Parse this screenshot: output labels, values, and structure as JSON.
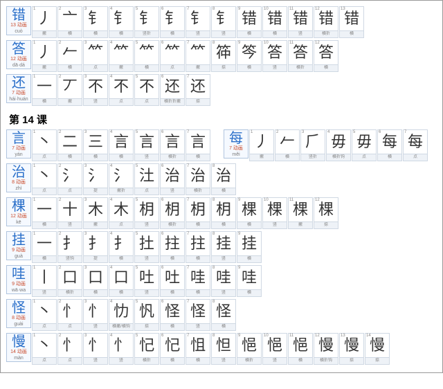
{
  "colors": {
    "border": "#cfd8e3",
    "head_border": "#b0c4de",
    "head_bg": "#f5f9ff",
    "char_color": "#2a6fc9",
    "stroke_count_color": "#c94a2a",
    "pinyin_color": "#7a7a7a",
    "label_bg": "#eef2f7",
    "glyph_color": "#333333"
  },
  "section_title": "第 14 课",
  "rows_top": [
    {
      "char": "错",
      "strokes_label": "13 动画",
      "pinyin": "cuò",
      "cells": [
        {
          "n": "1",
          "g": "丿",
          "l": "撇"
        },
        {
          "n": "2",
          "g": "亠",
          "l": "横"
        },
        {
          "n": "3",
          "g": "钅",
          "l": "横"
        },
        {
          "n": "4",
          "g": "钅",
          "l": "横"
        },
        {
          "n": "5",
          "g": "钅",
          "l": "竖折"
        },
        {
          "n": "6",
          "g": "钅",
          "l": "横"
        },
        {
          "n": "7",
          "g": "钅",
          "l": "竖"
        },
        {
          "n": "8",
          "g": "钅",
          "l": "竖"
        },
        {
          "n": "9",
          "g": "错",
          "l": "横"
        },
        {
          "n": "10",
          "g": "错",
          "l": "横"
        },
        {
          "n": "11",
          "g": "错",
          "l": "竖"
        },
        {
          "n": "12",
          "g": "错",
          "l": "横折"
        },
        {
          "n": "13",
          "g": "错",
          "l": "横"
        }
      ]
    },
    {
      "char": "答",
      "strokes_label": "12 动画",
      "pinyin": "dā·dá",
      "cells": [
        {
          "n": "1",
          "g": "丿",
          "l": "撇"
        },
        {
          "n": "2",
          "g": "𠂉",
          "l": "横"
        },
        {
          "n": "3",
          "g": "⺮",
          "l": "点"
        },
        {
          "n": "4",
          "g": "⺮",
          "l": "撇"
        },
        {
          "n": "5",
          "g": "⺮",
          "l": "横"
        },
        {
          "n": "6",
          "g": "⺮",
          "l": "点"
        },
        {
          "n": "7",
          "g": "⺮",
          "l": "撇"
        },
        {
          "n": "8",
          "g": "筗",
          "l": "捺"
        },
        {
          "n": "9",
          "g": "笒",
          "l": "横"
        },
        {
          "n": "10",
          "g": "答",
          "l": "竖"
        },
        {
          "n": "11",
          "g": "答",
          "l": "横折"
        },
        {
          "n": "12",
          "g": "答",
          "l": "横"
        }
      ]
    },
    {
      "char": "还",
      "strokes_label": "7 动画",
      "pinyin": "hái·huán",
      "cells": [
        {
          "n": "1",
          "g": "一",
          "l": "横"
        },
        {
          "n": "2",
          "g": "丆",
          "l": "撇"
        },
        {
          "n": "3",
          "g": "不",
          "l": "竖"
        },
        {
          "n": "4",
          "g": "不",
          "l": "点"
        },
        {
          "n": "5",
          "g": "不",
          "l": "点"
        },
        {
          "n": "6",
          "g": "还",
          "l": "横折折撇"
        },
        {
          "n": "7",
          "g": "还",
          "l": "捺"
        }
      ]
    }
  ],
  "rows_14": [
    {
      "left": {
        "char": "言",
        "strokes_label": "7 动画",
        "pinyin": "yán",
        "cells": [
          {
            "n": "1",
            "g": "丶",
            "l": "点"
          },
          {
            "n": "2",
            "g": "二",
            "l": "横"
          },
          {
            "n": "3",
            "g": "三",
            "l": "横"
          },
          {
            "n": "4",
            "g": "言",
            "l": "横"
          },
          {
            "n": "5",
            "g": "言",
            "l": "竖"
          },
          {
            "n": "6",
            "g": "言",
            "l": "横折"
          },
          {
            "n": "7",
            "g": "言",
            "l": "横"
          }
        ]
      },
      "right": {
        "char": "每",
        "strokes_label": "7 动画",
        "pinyin": "měi",
        "cells": [
          {
            "n": "1",
            "g": "丿",
            "l": "撇"
          },
          {
            "n": "2",
            "g": "𠂉",
            "l": "横"
          },
          {
            "n": "3",
            "g": "⺁",
            "l": "竖折"
          },
          {
            "n": "4",
            "g": "毋",
            "l": "横折钩"
          },
          {
            "n": "5",
            "g": "毋",
            "l": "点"
          },
          {
            "n": "6",
            "g": "每",
            "l": "横"
          },
          {
            "n": "7",
            "g": "每",
            "l": "点"
          }
        ]
      }
    },
    {
      "left": {
        "char": "治",
        "strokes_label": "8 动画",
        "pinyin": "zhì",
        "cells": [
          {
            "n": "1",
            "g": "丶",
            "l": "点"
          },
          {
            "n": "2",
            "g": "氵",
            "l": "点"
          },
          {
            "n": "3",
            "g": "氵",
            "l": "提"
          },
          {
            "n": "4",
            "g": "氵",
            "l": "撇折"
          },
          {
            "n": "5",
            "g": "汢",
            "l": "点"
          },
          {
            "n": "6",
            "g": "治",
            "l": "竖"
          },
          {
            "n": "7",
            "g": "治",
            "l": "横折"
          },
          {
            "n": "8",
            "g": "治",
            "l": "横"
          }
        ]
      }
    },
    {
      "left": {
        "char": "棵",
        "strokes_label": "12 动画",
        "pinyin": "kē",
        "cells": [
          {
            "n": "1",
            "g": "一",
            "l": "横"
          },
          {
            "n": "2",
            "g": "十",
            "l": "竖"
          },
          {
            "n": "3",
            "g": "木",
            "l": "撇"
          },
          {
            "n": "4",
            "g": "木",
            "l": "点"
          },
          {
            "n": "5",
            "g": "枂",
            "l": "竖"
          },
          {
            "n": "6",
            "g": "枂",
            "l": "横折"
          },
          {
            "n": "7",
            "g": "枂",
            "l": "横"
          },
          {
            "n": "8",
            "g": "枂",
            "l": "横"
          },
          {
            "n": "9",
            "g": "棵",
            "l": "横"
          },
          {
            "n": "10",
            "g": "棵",
            "l": "竖"
          },
          {
            "n": "11",
            "g": "棵",
            "l": "撇"
          },
          {
            "n": "12",
            "g": "棵",
            "l": "捺"
          }
        ]
      }
    },
    {
      "left": {
        "char": "挂",
        "strokes_label": "9 动画",
        "pinyin": "guà",
        "cells": [
          {
            "n": "1",
            "g": "一",
            "l": "横"
          },
          {
            "n": "2",
            "g": "扌",
            "l": "竖钩"
          },
          {
            "n": "3",
            "g": "扌",
            "l": "提"
          },
          {
            "n": "4",
            "g": "扌",
            "l": "横"
          },
          {
            "n": "5",
            "g": "扗",
            "l": "竖"
          },
          {
            "n": "6",
            "g": "拄",
            "l": "横"
          },
          {
            "n": "7",
            "g": "拄",
            "l": "横"
          },
          {
            "n": "8",
            "g": "挂",
            "l": "竖"
          },
          {
            "n": "9",
            "g": "挂",
            "l": "横"
          }
        ]
      }
    },
    {
      "left": {
        "char": "哇",
        "strokes_label": "9 动画",
        "pinyin": "wā·wa",
        "cells": [
          {
            "n": "1",
            "g": "丨",
            "l": "竖"
          },
          {
            "n": "2",
            "g": "口",
            "l": "横折"
          },
          {
            "n": "3",
            "g": "口",
            "l": "横"
          },
          {
            "n": "4",
            "g": "口",
            "l": "横"
          },
          {
            "n": "5",
            "g": "吐",
            "l": "竖"
          },
          {
            "n": "6",
            "g": "吐",
            "l": "横"
          },
          {
            "n": "7",
            "g": "哇",
            "l": "横"
          },
          {
            "n": "8",
            "g": "哇",
            "l": "竖"
          },
          {
            "n": "9",
            "g": "哇",
            "l": "横"
          }
        ]
      }
    },
    {
      "left": {
        "char": "怪",
        "strokes_label": "8 动画",
        "pinyin": "guài",
        "cells": [
          {
            "n": "1",
            "g": "丶",
            "l": "点"
          },
          {
            "n": "2",
            "g": "忄",
            "l": "点"
          },
          {
            "n": "3",
            "g": "忄",
            "l": "竖"
          },
          {
            "n": "4",
            "g": "忇",
            "l": "横撇/横钩"
          },
          {
            "n": "5",
            "g": "忛",
            "l": "捺"
          },
          {
            "n": "6",
            "g": "怪",
            "l": "横"
          },
          {
            "n": "7",
            "g": "怪",
            "l": "竖"
          },
          {
            "n": "8",
            "g": "怪",
            "l": "横"
          }
        ]
      }
    },
    {
      "left": {
        "char": "慢",
        "strokes_label": "14 动画",
        "pinyin": "màn",
        "cells": [
          {
            "n": "1",
            "g": "丶",
            "l": "点"
          },
          {
            "n": "2",
            "g": "忄",
            "l": "点"
          },
          {
            "n": "3",
            "g": "忄",
            "l": "竖"
          },
          {
            "n": "4",
            "g": "忄",
            "l": "竖"
          },
          {
            "n": "5",
            "g": "忋",
            "l": "横折"
          },
          {
            "n": "6",
            "g": "忋",
            "l": "横"
          },
          {
            "n": "7",
            "g": "怚",
            "l": "横"
          },
          {
            "n": "8",
            "g": "怛",
            "l": "竖"
          },
          {
            "n": "9",
            "g": "悒",
            "l": "横折"
          },
          {
            "n": "10",
            "g": "悒",
            "l": "竖"
          },
          {
            "n": "11",
            "g": "悒",
            "l": "横"
          },
          {
            "n": "12",
            "g": "慢",
            "l": "横折钩"
          },
          {
            "n": "13",
            "g": "慢",
            "l": "捺"
          },
          {
            "n": "14",
            "g": "慢",
            "l": "捺"
          }
        ]
      }
    }
  ]
}
